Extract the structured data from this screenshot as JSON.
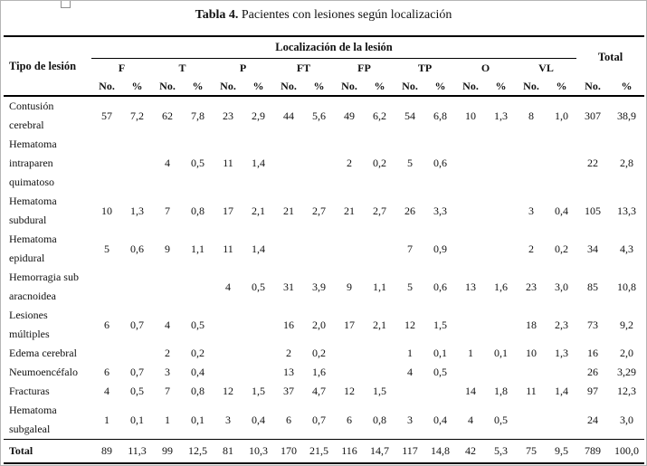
{
  "page": {
    "title_prefix": "Tabla 4.",
    "title_rest": " Pacientes con lesiones según localización"
  },
  "table": {
    "corner_header": "Tipo de lesión",
    "group_header": "Localización de la lesión",
    "total_header": "Total",
    "location_groups": [
      "F",
      "T",
      "P",
      "FT",
      "FP",
      "TP",
      "O",
      "VL"
    ],
    "subheaders": {
      "no": "No.",
      "pct": "%"
    },
    "rows": [
      {
        "label_lines": [
          "Contusión",
          "cerebral"
        ],
        "bold": false,
        "values": [
          "57",
          "7,2",
          "62",
          "7,8",
          "23",
          "2,9",
          "44",
          "5,6",
          "49",
          "6,2",
          "54",
          "6,8",
          "10",
          "1,3",
          "8",
          "1,0",
          "307",
          "38,9"
        ]
      },
      {
        "label_lines": [
          "Hematoma",
          "intraparen",
          "quimatoso"
        ],
        "bold": false,
        "values": [
          "",
          "",
          "4",
          "0,5",
          "11",
          "1,4",
          "",
          "",
          "2",
          "0,2",
          "5",
          "0,6",
          "",
          "",
          "",
          "",
          "22",
          "2,8"
        ]
      },
      {
        "label_lines": [
          "Hematoma",
          "subdural"
        ],
        "bold": false,
        "values": [
          "10",
          "1,3",
          "7",
          "0,8",
          "17",
          "2,1",
          "21",
          "2,7",
          "21",
          "2,7",
          "26",
          "3,3",
          "",
          "",
          "3",
          "0,4",
          "105",
          "13,3"
        ]
      },
      {
        "label_lines": [
          "Hematoma",
          "epidural"
        ],
        "bold": false,
        "values": [
          "5",
          "0,6",
          "9",
          "1,1",
          "11",
          "1,4",
          "",
          "",
          "",
          "",
          "7",
          "0,9",
          "",
          "",
          "2",
          "0,2",
          "34",
          "4,3"
        ]
      },
      {
        "label_lines": [
          "Hemorragia sub",
          "aracnoidea"
        ],
        "bold": false,
        "values": [
          "",
          "",
          "",
          "",
          "4",
          "0,5",
          "31",
          "3,9",
          "9",
          "1,1",
          "5",
          "0,6",
          "13",
          "1,6",
          "23",
          "3,0",
          "85",
          "10,8"
        ]
      },
      {
        "label_lines": [
          "Lesiones",
          "múltiples"
        ],
        "bold": false,
        "values": [
          "6",
          "0,7",
          "4",
          "0,5",
          "",
          "",
          "16",
          "2,0",
          "17",
          "2,1",
          "12",
          "1,5",
          "",
          "",
          "18",
          "2,3",
          "73",
          "9,2"
        ]
      },
      {
        "label_lines": [
          "Edema cerebral"
        ],
        "bold": false,
        "values": [
          "",
          "",
          "2",
          "0,2",
          "",
          "",
          "2",
          "0,2",
          "",
          "",
          "1",
          "0,1",
          "1",
          "0,1",
          "10",
          "1,3",
          "16",
          "2,0"
        ]
      },
      {
        "label_lines": [
          "Neumoencéfalo"
        ],
        "bold": false,
        "values": [
          "6",
          "0,7",
          "3",
          "0,4",
          "",
          "",
          "13",
          "1,6",
          "",
          "",
          "4",
          "0,5",
          "",
          "",
          "",
          "",
          "26",
          "3,29"
        ]
      },
      {
        "label_lines": [
          "Fracturas"
        ],
        "bold": false,
        "values": [
          "4",
          "0,5",
          "7",
          "0,8",
          "12",
          "1,5",
          "37",
          "4,7",
          "12",
          "1,5",
          "",
          "",
          "14",
          "1,8",
          "11",
          "1,4",
          "97",
          "12,3"
        ]
      },
      {
        "label_lines": [
          "Hematoma",
          "subgaleal"
        ],
        "bold": false,
        "values": [
          "1",
          "0,1",
          "1",
          "0,1",
          "3",
          "0,4",
          "6",
          "0,7",
          "6",
          "0,8",
          "3",
          "0,4",
          "4",
          "0,5",
          "",
          "",
          "24",
          "3,0"
        ]
      },
      {
        "label_lines": [
          "Total"
        ],
        "bold": true,
        "values": [
          "89",
          "11,3",
          "99",
          "12,5",
          "81",
          "10,3",
          "170",
          "21,5",
          "116",
          "14,7",
          "117",
          "14,8",
          "42",
          "5,3",
          "75",
          "9,5",
          "789",
          "100,0"
        ]
      }
    ]
  },
  "colors": {
    "rule": "#000000",
    "page_border": "#b5b5b5"
  }
}
